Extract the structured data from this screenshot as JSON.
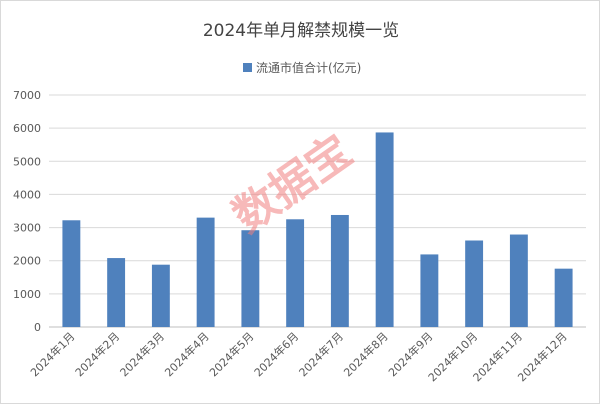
{
  "chart_data": {
    "type": "bar",
    "title": "2024年单月解禁规模一览",
    "legend": {
      "position": "top",
      "entries": [
        "流通市值合计(亿元)"
      ]
    },
    "categories": [
      "2024年1月",
      "2024年2月",
      "2024年3月",
      "2024年4月",
      "2024年5月",
      "2024年6月",
      "2024年7月",
      "2024年8月",
      "2024年9月",
      "2024年10月",
      "2024年11月",
      "2024年12月"
    ],
    "series": [
      {
        "name": "流通市值合计(亿元)",
        "color": "#4f81bd",
        "values": [
          3220,
          2080,
          1880,
          3300,
          2920,
          3250,
          3380,
          5870,
          2190,
          2610,
          2790,
          1760
        ]
      }
    ],
    "ylim": [
      0,
      7000
    ],
    "yticks": [
      "0",
      "1000",
      "2000",
      "3000",
      "4000",
      "5000",
      "6000",
      "7000"
    ],
    "grid": true,
    "xlabel": "",
    "ylabel": ""
  },
  "watermark": "数据宝"
}
